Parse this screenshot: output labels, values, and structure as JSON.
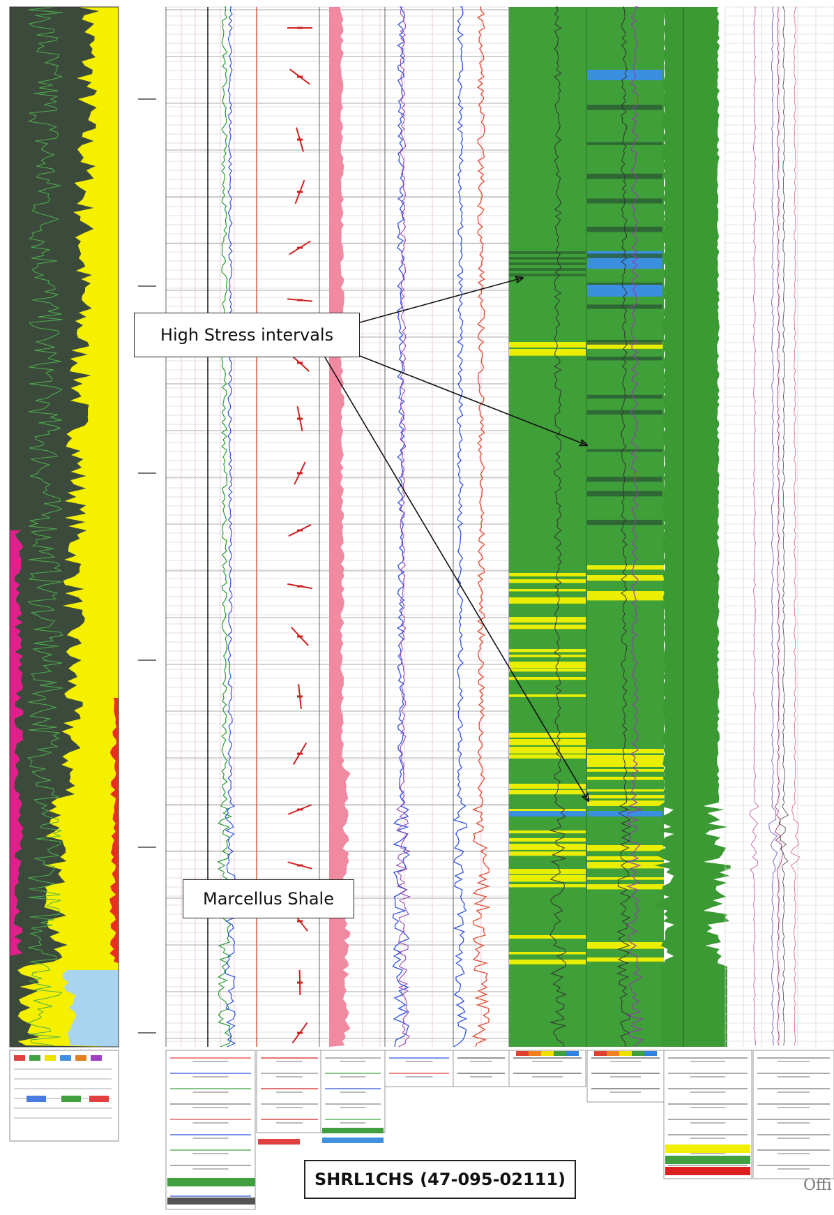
{
  "annotations": {
    "stress_label": "High Stress intervals",
    "formation_label": "Marcellus Shale",
    "well_id": "SHRL1CHS (47-095-02111)",
    "corner_text": "Offi"
  },
  "colors": {
    "mineral_dark": "#3b4a3b",
    "mineral_yellow": "#f5f000",
    "mineral_magenta": "#e0208a",
    "mineral_lightblue": "#a8d4ef",
    "mineral_red": "#e83020",
    "stress_green": "#3f9f38",
    "stress_yellow": "#f2f200",
    "stress_blue": "#3a8fe0",
    "shade_pink": "#f08aa0",
    "curve_blue": "#3050e0",
    "curve_red": "#e04a30",
    "curve_green": "#2a9a3a",
    "curve_purple": "#9040b0"
  },
  "icons": [
    "arrow-icon",
    "rose-diagram-icon"
  ]
}
